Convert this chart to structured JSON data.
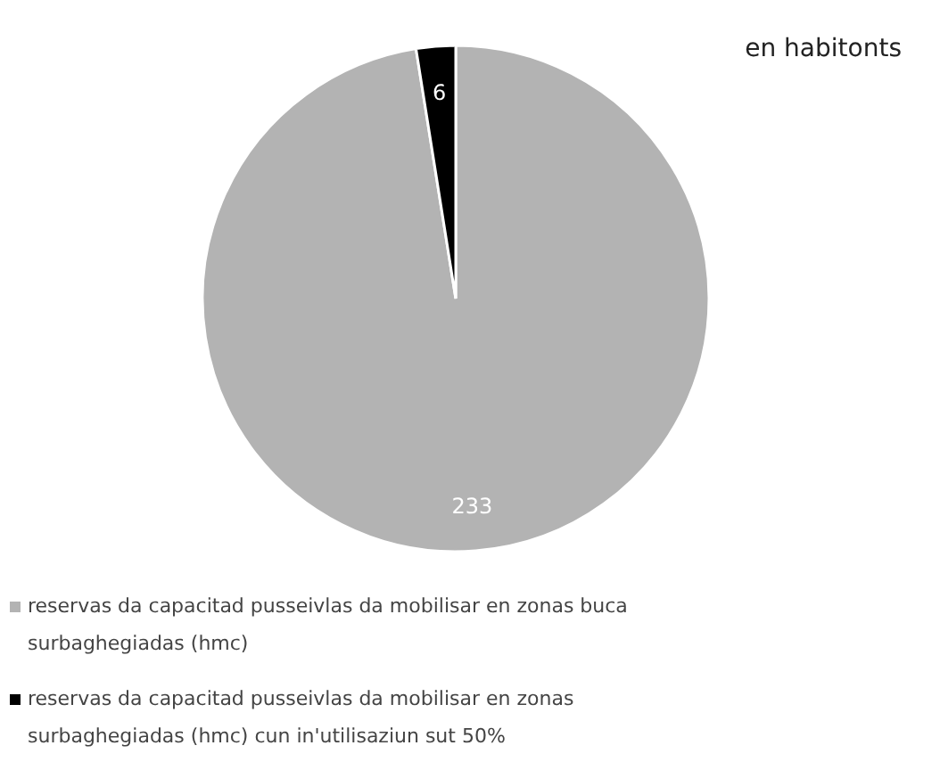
{
  "chart_data": {
    "type": "pie",
    "title": "en habitonts",
    "categories": [
      "reservas da capacitad pusseivlas da mobilisar en zonas buca surbaghegiadas (hmc)",
      "reservas da capacitad pusseivlas da mobilisar en zonas surbaghegiadas (hmc) cun in'utilisaziun sut 50%"
    ],
    "values": [
      233,
      6
    ],
    "colors": [
      "#b3b3b3",
      "#000000"
    ],
    "data_labels": true,
    "legend": "bottom"
  }
}
